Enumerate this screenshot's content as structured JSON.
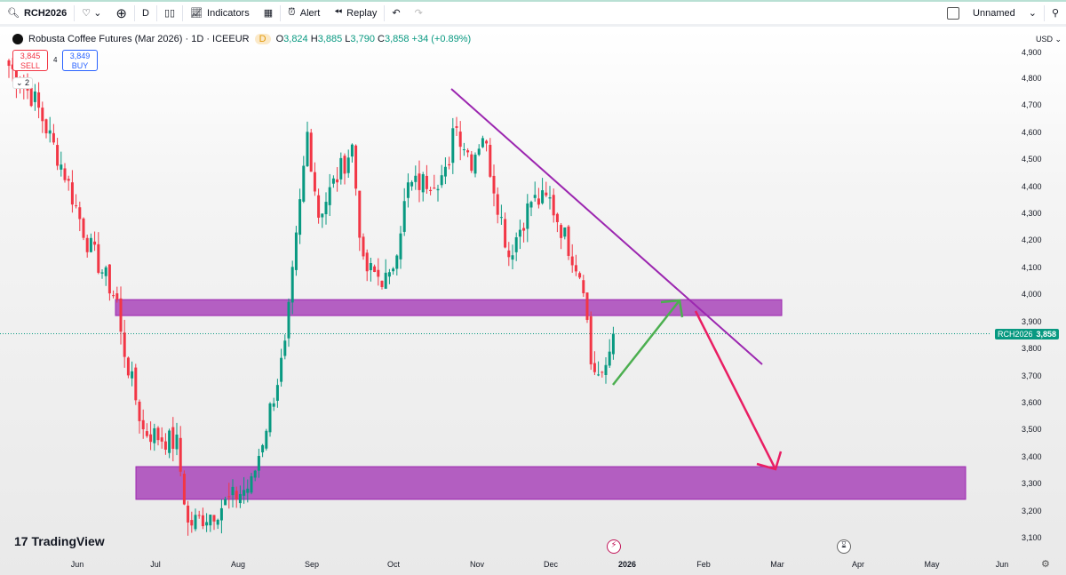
{
  "toolbar": {
    "symbol": "RCH2026",
    "interval": "D",
    "indicators": "Indicators",
    "alert": "Alert",
    "replay": "Replay",
    "layout_name": "Unnamed"
  },
  "legend": {
    "title": "Robusta Coffee Futures (Mar 2026) · 1D · ICEEUR",
    "badge": "D",
    "o_label": "O",
    "o": "3,824",
    "h_label": "H",
    "h": "3,885",
    "l_label": "L",
    "l": "3,790",
    "c_label": "C",
    "c": "3,858",
    "change": "+34 (+0.89%)"
  },
  "trade": {
    "sell_price": "3,845",
    "sell": "SELL",
    "spread": "4",
    "buy_price": "3,849",
    "buy": "BUY",
    "collapse_count": "2"
  },
  "currency": "USD",
  "current_price": {
    "symbol": "RCH2026",
    "value": "3,858",
    "color": "#089981"
  },
  "brand": "TradingView",
  "colors": {
    "up": "#089981",
    "down": "#f23645",
    "zone": "#9c27b0",
    "trend": "#9c27b0",
    "green_arrow": "#4caf50",
    "red_arrow": "#e91e63"
  },
  "chart_data": {
    "type": "candlestick",
    "title": "Robusta Coffee Futures (Mar 2026) · 1D · ICEEUR",
    "ylim": [
      3050,
      4950
    ],
    "y_ticks": [
      "4,900",
      "4,800",
      "4,700",
      "4,600",
      "4,500",
      "4,400",
      "4,300",
      "4,200",
      "4,100",
      "4,000",
      "3,900",
      "3,800",
      "3,700",
      "3,600",
      "3,500",
      "3,400",
      "3,300",
      "3,200",
      "3,100"
    ],
    "x_ticks": [
      "Jun",
      "Jul",
      "Aug",
      "Sep",
      "Oct",
      "Nov",
      "Dec",
      "2026",
      "Feb",
      "Mar",
      "Apr",
      "May",
      "Jun"
    ],
    "close_keypoints": [
      [
        0,
        4850
      ],
      [
        7,
        4720
      ],
      [
        15,
        4450
      ],
      [
        21,
        4200
      ],
      [
        29,
        3980
      ],
      [
        30,
        3850
      ],
      [
        36,
        3500
      ],
      [
        45,
        3450
      ],
      [
        48,
        3150
      ],
      [
        55,
        3200
      ],
      [
        65,
        3300
      ],
      [
        74,
        3800
      ],
      [
        80,
        4600
      ],
      [
        83,
        4300
      ],
      [
        92,
        4550
      ],
      [
        95,
        4100
      ],
      [
        102,
        4050
      ],
      [
        107,
        4400
      ],
      [
        118,
        4450
      ],
      [
        119,
        4650
      ],
      [
        124,
        4500
      ],
      [
        127,
        4600
      ],
      [
        134,
        4150
      ],
      [
        140,
        4350
      ],
      [
        145,
        4350
      ],
      [
        154,
        4050
      ],
      [
        156,
        3750
      ],
      [
        159,
        3680
      ],
      [
        162,
        3858
      ]
    ],
    "zones": [
      {
        "top": 3984,
        "bottom": 3925
      },
      {
        "top": 3366,
        "bottom": 3245
      }
    ],
    "last_price": 3858
  }
}
